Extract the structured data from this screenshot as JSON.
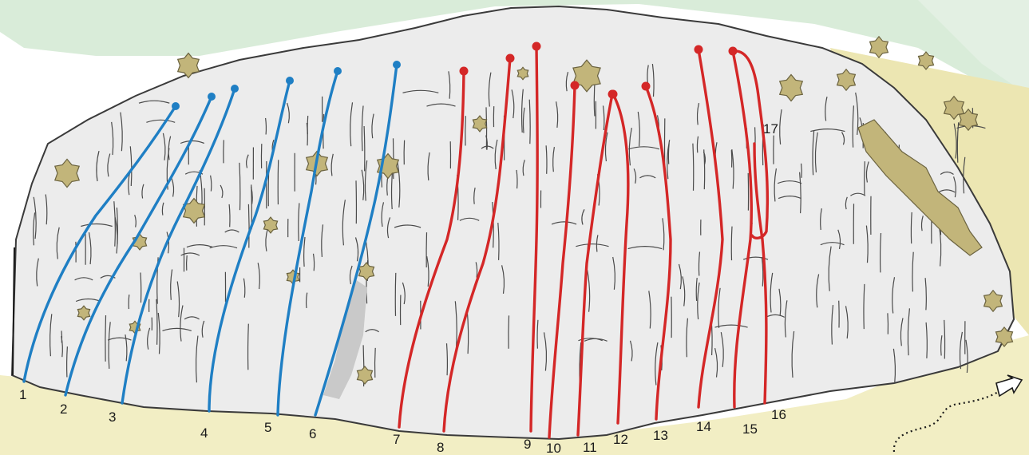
{
  "colors": {
    "sky": "#d9ecd9",
    "ground": "#f2eec4",
    "rock": "#ececec",
    "rock_outline": "#3a3a3a",
    "crack": "#4a4a4a",
    "bush": "#c2b57a",
    "bush_outline": "#6b6340",
    "blue_route": "#1f7fc4",
    "red_route": "#d42727",
    "path": "#1a1a1a"
  },
  "icons": [
    "approach-arrow-icon"
  ],
  "routes": [
    {
      "number": "1",
      "color": "blue"
    },
    {
      "number": "2",
      "color": "blue"
    },
    {
      "number": "3",
      "color": "blue"
    },
    {
      "number": "4",
      "color": "blue"
    },
    {
      "number": "5",
      "color": "blue"
    },
    {
      "number": "6",
      "color": "blue"
    },
    {
      "number": "7",
      "color": "red"
    },
    {
      "number": "8",
      "color": "red"
    },
    {
      "number": "9",
      "color": "red"
    },
    {
      "number": "10",
      "color": "red"
    },
    {
      "number": "11",
      "color": "red"
    },
    {
      "number": "12",
      "color": "red"
    },
    {
      "number": "13",
      "color": "red"
    },
    {
      "number": "14",
      "color": "red"
    },
    {
      "number": "15",
      "color": "red"
    },
    {
      "number": "16",
      "color": "red"
    },
    {
      "number": "17",
      "color": "red"
    }
  ]
}
